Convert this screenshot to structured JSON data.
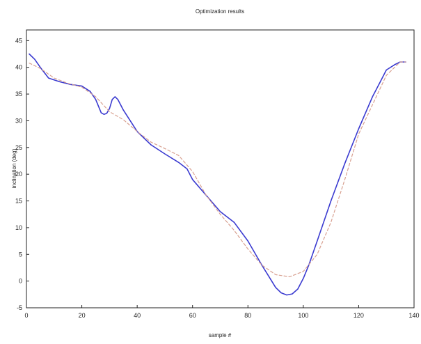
{
  "chart_data": {
    "type": "line",
    "title": "Optimization results",
    "xlabel": "sample #",
    "ylabel": "inclination (deg)",
    "xlim": [
      0,
      140
    ],
    "ylim": [
      -5,
      47
    ],
    "xticks": [
      0,
      20,
      40,
      60,
      80,
      100,
      120,
      140
    ],
    "yticks": [
      -5,
      0,
      5,
      10,
      15,
      20,
      25,
      30,
      35,
      40,
      45
    ],
    "grid": false,
    "legend": "none",
    "series": [
      {
        "color": "#3a3ad0",
        "style": "solid",
        "x": [
          1,
          3,
          5,
          8,
          12,
          16,
          20,
          23,
          25,
          27,
          28,
          29,
          30,
          31,
          32,
          33,
          35,
          40,
          45,
          50,
          55,
          58,
          60,
          65,
          70,
          75,
          80,
          85,
          88,
          90,
          92,
          94,
          96,
          98,
          100,
          102,
          105,
          110,
          115,
          120,
          125,
          128,
          130,
          133,
          135,
          137
        ],
        "y": [
          42.5,
          41.5,
          40,
          38,
          37.3,
          36.8,
          36.5,
          35.5,
          34,
          31.5,
          31.2,
          31.4,
          32.3,
          34,
          34.5,
          34,
          32,
          28,
          25.5,
          23.8,
          22.2,
          21,
          19,
          16,
          13,
          11,
          7.5,
          3,
          0.5,
          -1.2,
          -2.2,
          -2.6,
          -2.4,
          -1.5,
          0.5,
          3,
          7.5,
          15,
          22,
          28.5,
          34.5,
          37.5,
          39.5,
          40.5,
          41,
          41
        ]
      },
      {
        "color": "#d8a090",
        "style": "dashed",
        "x": [
          1,
          5,
          10,
          15,
          20,
          25,
          30,
          35,
          40,
          45,
          50,
          55,
          60,
          65,
          70,
          75,
          80,
          85,
          90,
          95,
          100,
          105,
          110,
          115,
          120,
          125,
          130,
          135,
          137
        ],
        "y": [
          40.8,
          39.8,
          38,
          37,
          36.3,
          34.5,
          31.7,
          30.2,
          28,
          26,
          24.8,
          23.5,
          20.5,
          16,
          12.5,
          9.5,
          6,
          3,
          1.2,
          0.8,
          1.8,
          5,
          11,
          19,
          27.5,
          33,
          38.5,
          41,
          41
        ]
      }
    ]
  }
}
